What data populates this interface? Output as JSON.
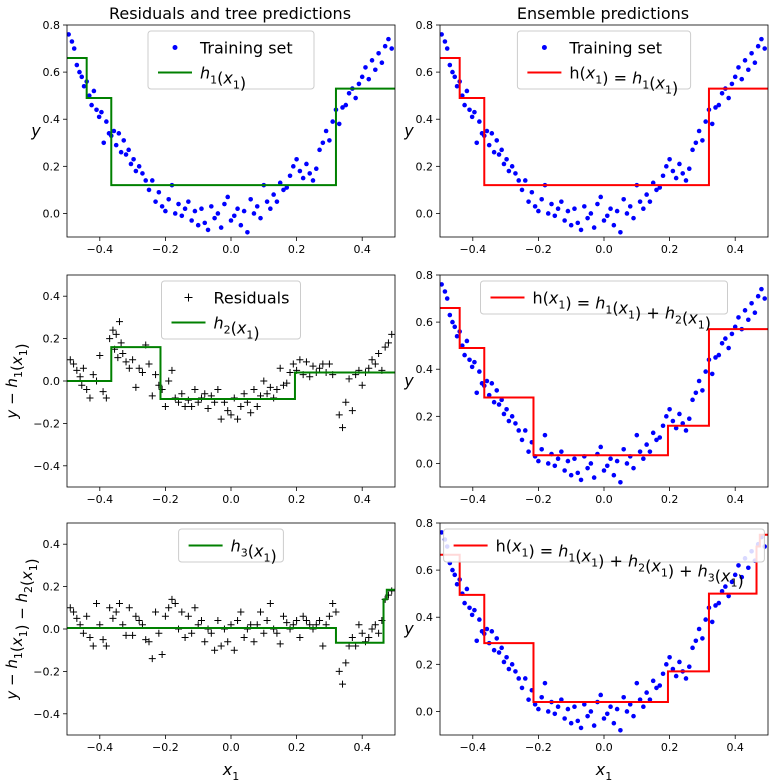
{
  "figure": {
    "col_titles": [
      "Residuals and tree predictions",
      "Ensemble predictions"
    ]
  },
  "chart_data": [
    {
      "id": "tl",
      "type": "scatter+step",
      "title": "Residuals and tree predictions",
      "ylabel": "y",
      "xlabel": "",
      "xlim": [
        -0.5,
        0.5
      ],
      "ylim": [
        -0.1,
        0.8
      ],
      "xticks": [
        -0.4,
        -0.2,
        0.0,
        0.2,
        0.4
      ],
      "yticks": [
        0.0,
        0.2,
        0.4,
        0.6,
        0.8
      ],
      "legend": {
        "placement": "upper center",
        "entries": [
          {
            "label": "Training set",
            "kind": "point",
            "color": "#0000ff"
          },
          {
            "label": "h1(x1)",
            "kind": "line",
            "color": "#008000"
          }
        ]
      },
      "points": {
        "series": "train",
        "color": "#0000ff",
        "marker": "dot"
      },
      "step": {
        "name": "h1(x1)",
        "color": "#008000",
        "breaks": [
          -0.5,
          -0.44,
          -0.365,
          0.32,
          0.5
        ],
        "values": [
          0.66,
          0.49,
          0.12,
          0.53
        ]
      }
    },
    {
      "id": "tr",
      "type": "scatter+step",
      "title": "Ensemble predictions",
      "ylabel": "y",
      "xlabel": "",
      "xlim": [
        -0.5,
        0.5
      ],
      "ylim": [
        -0.1,
        0.8
      ],
      "xticks": [
        -0.4,
        -0.2,
        0.0,
        0.2,
        0.4
      ],
      "yticks": [
        0.0,
        0.2,
        0.4,
        0.6,
        0.8
      ],
      "legend": {
        "placement": "upper center",
        "entries": [
          {
            "label": "Training set",
            "kind": "point",
            "color": "#0000ff"
          },
          {
            "label": "h(x1) = h1(x1)",
            "kind": "line",
            "color": "#ff0000"
          }
        ]
      },
      "points": {
        "series": "train",
        "color": "#0000ff",
        "marker": "dot"
      },
      "step": {
        "name": "h(x1) = h1(x1)",
        "color": "#ff0000",
        "breaks": [
          -0.5,
          -0.44,
          -0.365,
          0.32,
          0.5
        ],
        "values": [
          0.66,
          0.49,
          0.12,
          0.53
        ]
      }
    },
    {
      "id": "ml",
      "type": "scatter+step",
      "title": "",
      "ylabel": "y − h1(x1)",
      "xlabel": "",
      "xlim": [
        -0.5,
        0.5
      ],
      "ylim": [
        -0.5,
        0.5
      ],
      "xticks": [
        -0.4,
        -0.2,
        0.0,
        0.2,
        0.4
      ],
      "yticks": [
        -0.4,
        -0.2,
        0.0,
        0.2,
        0.4
      ],
      "legend": {
        "placement": "upper center",
        "entries": [
          {
            "label": "Residuals",
            "kind": "plus",
            "color": "#000000"
          },
          {
            "label": "h2(x1)",
            "kind": "line",
            "color": "#008000"
          }
        ]
      },
      "points": {
        "series": "res1",
        "color": "#000000",
        "marker": "plus"
      },
      "step": {
        "name": "h2(x1)",
        "color": "#008000",
        "breaks": [
          -0.5,
          -0.365,
          -0.215,
          0.195,
          0.5
        ],
        "values": [
          0.0,
          0.16,
          -0.085,
          0.04
        ]
      }
    },
    {
      "id": "mr",
      "type": "scatter+step",
      "title": "",
      "ylabel": "y",
      "xlabel": "",
      "xlim": [
        -0.5,
        0.5
      ],
      "ylim": [
        -0.1,
        0.8
      ],
      "xticks": [
        -0.4,
        -0.2,
        0.0,
        0.2,
        0.4
      ],
      "yticks": [
        0.0,
        0.2,
        0.4,
        0.6,
        0.8
      ],
      "legend": {
        "placement": "upper center",
        "entries": [
          {
            "label": "h(x1) = h1(x1) + h2(x1)",
            "kind": "line",
            "color": "#ff0000"
          }
        ]
      },
      "points": {
        "series": "train",
        "color": "#0000ff",
        "marker": "dot"
      },
      "step": {
        "name": "h(x1) = h1(x1) + h2(x1)",
        "color": "#ff0000",
        "breaks": [
          -0.5,
          -0.44,
          -0.365,
          -0.215,
          0.195,
          0.32,
          0.5
        ],
        "values": [
          0.66,
          0.49,
          0.28,
          0.035,
          0.16,
          0.57
        ]
      }
    },
    {
      "id": "bl",
      "type": "scatter+step",
      "title": "",
      "ylabel": "y − h1(x1) − h2(x1)",
      "xlabel": "x1",
      "xlim": [
        -0.5,
        0.5
      ],
      "ylim": [
        -0.5,
        0.5
      ],
      "xticks": [
        -0.4,
        -0.2,
        0.0,
        0.2,
        0.4
      ],
      "yticks": [
        -0.4,
        -0.2,
        0.0,
        0.2,
        0.4
      ],
      "legend": {
        "placement": "upper center",
        "entries": [
          {
            "label": "h3(x1)",
            "kind": "line",
            "color": "#008000"
          }
        ]
      },
      "points": {
        "series": "res2",
        "color": "#000000",
        "marker": "plus"
      },
      "step": {
        "name": "h3(x1)",
        "color": "#008000",
        "breaks": [
          -0.5,
          0.32,
          0.465,
          0.475,
          0.5
        ],
        "values": [
          0.005,
          -0.065,
          0.14,
          0.185
        ]
      }
    },
    {
      "id": "br",
      "type": "scatter+step",
      "title": "",
      "ylabel": "y",
      "xlabel": "x1",
      "xlim": [
        -0.5,
        0.5
      ],
      "ylim": [
        -0.1,
        0.8
      ],
      "xticks": [
        -0.4,
        -0.2,
        0.0,
        0.2,
        0.4
      ],
      "yticks": [
        0.0,
        0.2,
        0.4,
        0.6,
        0.8
      ],
      "legend": {
        "placement": "upper center",
        "entries": [
          {
            "label": "h(x1) = h1(x1) + h2(x1) + h3(x1)",
            "kind": "line",
            "color": "#ff0000"
          }
        ]
      },
      "points": {
        "series": "train",
        "color": "#0000ff",
        "marker": "dot"
      },
      "step": {
        "name": "h(x1) = h1(x1) + h2(x1) + h3(x1)",
        "color": "#ff0000",
        "breaks": [
          -0.5,
          -0.44,
          -0.365,
          -0.215,
          0.195,
          0.32,
          0.465,
          0.475,
          0.5
        ],
        "values": [
          0.665,
          0.495,
          0.29,
          0.04,
          0.17,
          0.5,
          0.7,
          0.75
        ]
      }
    }
  ],
  "scatter_series": {
    "train": {
      "x": [
        -0.495,
        -0.485,
        -0.478,
        -0.47,
        -0.462,
        -0.455,
        -0.448,
        -0.44,
        -0.432,
        -0.425,
        -0.418,
        -0.41,
        -0.402,
        -0.395,
        -0.388,
        -0.38,
        -0.372,
        -0.365,
        -0.357,
        -0.35,
        -0.342,
        -0.335,
        -0.327,
        -0.32,
        -0.312,
        -0.305,
        -0.297,
        -0.29,
        -0.28,
        -0.27,
        -0.26,
        -0.25,
        -0.24,
        -0.23,
        -0.22,
        -0.21,
        -0.2,
        -0.19,
        -0.18,
        -0.17,
        -0.16,
        -0.15,
        -0.14,
        -0.13,
        -0.12,
        -0.11,
        -0.1,
        -0.09,
        -0.08,
        -0.07,
        -0.06,
        -0.05,
        -0.04,
        -0.03,
        -0.02,
        -0.01,
        0.0,
        0.01,
        0.02,
        0.03,
        0.04,
        0.05,
        0.06,
        0.07,
        0.08,
        0.09,
        0.1,
        0.11,
        0.12,
        0.13,
        0.14,
        0.15,
        0.16,
        0.17,
        0.18,
        0.19,
        0.2,
        0.21,
        0.22,
        0.23,
        0.24,
        0.25,
        0.26,
        0.27,
        0.28,
        0.29,
        0.3,
        0.31,
        0.32,
        0.33,
        0.34,
        0.35,
        0.36,
        0.37,
        0.38,
        0.39,
        0.4,
        0.41,
        0.42,
        0.43,
        0.44,
        0.45,
        0.46,
        0.47,
        0.48,
        0.49
      ],
      "y": [
        0.76,
        0.73,
        0.7,
        0.63,
        0.6,
        0.58,
        0.54,
        0.56,
        0.5,
        0.46,
        0.52,
        0.44,
        0.41,
        0.43,
        0.3,
        0.39,
        0.34,
        0.33,
        0.35,
        0.29,
        0.34,
        0.26,
        0.31,
        0.25,
        0.27,
        0.21,
        0.23,
        0.18,
        0.2,
        0.17,
        0.14,
        0.1,
        0.14,
        0.05,
        0.09,
        0.03,
        0.01,
        0.06,
        0.12,
        0.0,
        0.04,
        -0.01,
        0.02,
        0.05,
        -0.03,
        0.01,
        -0.05,
        0.02,
        -0.04,
        -0.07,
        0.03,
        -0.02,
        0.0,
        -0.06,
        0.04,
        0.07,
        -0.03,
        -0.01,
        0.02,
        -0.05,
        0.01,
        -0.08,
        0.06,
        0.0,
        0.03,
        -0.02,
        0.12,
        0.05,
        0.02,
        0.08,
        0.05,
        0.13,
        0.1,
        0.11,
        0.16,
        0.2,
        0.23,
        0.18,
        0.15,
        0.21,
        0.17,
        0.14,
        0.19,
        0.27,
        0.3,
        0.35,
        0.31,
        0.39,
        0.44,
        0.38,
        0.45,
        0.46,
        0.51,
        0.53,
        0.49,
        0.55,
        0.58,
        0.62,
        0.57,
        0.65,
        0.61,
        0.68,
        0.64,
        0.71,
        0.74,
        0.7
      ]
    },
    "res1": {
      "x": [
        -0.49,
        -0.48,
        -0.47,
        -0.46,
        -0.455,
        -0.45,
        -0.44,
        -0.43,
        -0.42,
        -0.41,
        -0.4,
        -0.39,
        -0.38,
        -0.37,
        -0.36,
        -0.355,
        -0.35,
        -0.345,
        -0.34,
        -0.335,
        -0.33,
        -0.32,
        -0.31,
        -0.3,
        -0.29,
        -0.28,
        -0.27,
        -0.26,
        -0.25,
        -0.24,
        -0.23,
        -0.22,
        -0.21,
        -0.2,
        -0.19,
        -0.18,
        -0.17,
        -0.16,
        -0.15,
        -0.14,
        -0.13,
        -0.12,
        -0.11,
        -0.1,
        -0.09,
        -0.08,
        -0.07,
        -0.06,
        -0.05,
        -0.04,
        -0.03,
        -0.02,
        -0.01,
        0.0,
        0.01,
        0.02,
        0.03,
        0.04,
        0.05,
        0.06,
        0.07,
        0.08,
        0.09,
        0.1,
        0.11,
        0.12,
        0.13,
        0.14,
        0.15,
        0.16,
        0.17,
        0.18,
        0.19,
        0.2,
        0.21,
        0.22,
        0.23,
        0.24,
        0.25,
        0.26,
        0.27,
        0.28,
        0.29,
        0.3,
        0.31,
        0.33,
        0.34,
        0.35,
        0.36,
        0.37,
        0.38,
        0.39,
        0.4,
        0.41,
        0.42,
        0.43,
        0.44,
        0.45,
        0.46,
        0.47,
        0.48,
        0.49
      ],
      "y": [
        0.1,
        0.08,
        0.05,
        0.02,
        -0.02,
        0.06,
        -0.04,
        -0.08,
        0.03,
        0.0,
        0.12,
        -0.05,
        -0.08,
        0.2,
        0.24,
        0.15,
        0.22,
        0.11,
        0.28,
        0.18,
        0.13,
        0.09,
        0.06,
        0.1,
        -0.03,
        0.06,
        0.04,
        0.17,
        0.08,
        -0.07,
        0.03,
        -0.02,
        -0.04,
        -0.12,
        0.0,
        0.05,
        -0.08,
        -0.1,
        -0.06,
        -0.12,
        -0.09,
        -0.12,
        -0.04,
        -0.1,
        -0.08,
        -0.06,
        -0.13,
        -0.07,
        -0.1,
        -0.04,
        -0.18,
        -0.1,
        -0.14,
        -0.16,
        -0.08,
        -0.18,
        -0.12,
        -0.06,
        -0.1,
        -0.15,
        -0.04,
        -0.12,
        -0.07,
        0.0,
        -0.06,
        -0.03,
        -0.08,
        -0.04,
        0.06,
        -0.02,
        -0.01,
        0.04,
        0.08,
        0.05,
        0.1,
        0.03,
        0.09,
        0.02,
        0.07,
        0.04,
        0.06,
        0.08,
        0.04,
        0.08,
        0.03,
        -0.16,
        -0.22,
        -0.1,
        0.01,
        -0.14,
        0.03,
        0.05,
        -0.02,
        0.04,
        0.06,
        0.1,
        0.08,
        0.13,
        0.05,
        0.16,
        0.18,
        0.22
      ]
    },
    "res2": {
      "x": [
        -0.49,
        -0.48,
        -0.47,
        -0.46,
        -0.45,
        -0.44,
        -0.43,
        -0.42,
        -0.41,
        -0.4,
        -0.39,
        -0.38,
        -0.37,
        -0.36,
        -0.35,
        -0.34,
        -0.33,
        -0.32,
        -0.31,
        -0.3,
        -0.29,
        -0.28,
        -0.27,
        -0.26,
        -0.25,
        -0.24,
        -0.23,
        -0.22,
        -0.21,
        -0.2,
        -0.19,
        -0.18,
        -0.17,
        -0.16,
        -0.15,
        -0.14,
        -0.13,
        -0.12,
        -0.11,
        -0.1,
        -0.09,
        -0.08,
        -0.07,
        -0.06,
        -0.05,
        -0.04,
        -0.03,
        -0.02,
        -0.01,
        0.0,
        0.01,
        0.02,
        0.03,
        0.04,
        0.05,
        0.06,
        0.07,
        0.08,
        0.09,
        0.1,
        0.11,
        0.12,
        0.13,
        0.14,
        0.15,
        0.16,
        0.17,
        0.18,
        0.19,
        0.2,
        0.21,
        0.22,
        0.23,
        0.24,
        0.25,
        0.26,
        0.27,
        0.28,
        0.29,
        0.3,
        0.31,
        0.32,
        0.33,
        0.34,
        0.35,
        0.36,
        0.37,
        0.38,
        0.39,
        0.4,
        0.41,
        0.42,
        0.43,
        0.44,
        0.45,
        0.46,
        0.47,
        0.48,
        0.49
      ],
      "y": [
        0.1,
        0.08,
        0.05,
        0.02,
        -0.02,
        0.06,
        -0.04,
        -0.08,
        0.12,
        0.02,
        -0.05,
        -0.08,
        0.1,
        0.05,
        0.08,
        0.12,
        0.02,
        -0.03,
        0.1,
        -0.03,
        0.06,
        0.04,
        0.02,
        -0.05,
        -0.06,
        -0.14,
        0.08,
        -0.02,
        -0.12,
        0.06,
        0.1,
        0.14,
        0.12,
        0.0,
        0.08,
        -0.04,
        0.06,
        -0.02,
        0.1,
        0.02,
        0.04,
        -0.06,
        0.0,
        -0.02,
        -0.1,
        0.04,
        -0.08,
        0.0,
        -0.06,
        0.02,
        -0.1,
        0.04,
        0.08,
        -0.04,
        0.0,
        0.02,
        -0.06,
        0.02,
        0.08,
        -0.02,
        0.04,
        0.12,
        0.0,
        -0.02,
        -0.07,
        0.06,
        0.03,
        0.0,
        0.02,
        0.04,
        -0.04,
        0.06,
        0.04,
        0.02,
        0.0,
        0.02,
        0.04,
        -0.08,
        0.02,
        0.06,
        0.12,
        0.08,
        -0.2,
        -0.26,
        -0.16,
        -0.08,
        -0.04,
        -0.08,
        0.02,
        -0.02,
        -0.06,
        -0.04,
        0.0,
        0.02,
        -0.02,
        0.04,
        0.14,
        0.16,
        0.18
      ]
    }
  }
}
